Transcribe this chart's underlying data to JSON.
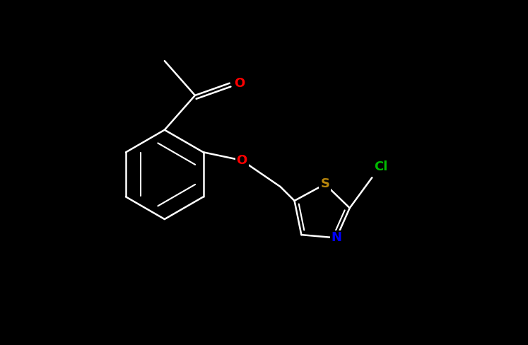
{
  "background_color": "#000000",
  "figsize": [
    7.47,
    4.88
  ],
  "dpi": 100,
  "atom_colors": {
    "O": "#FF0000",
    "S": "#B8860B",
    "N": "#0000FF",
    "Cl": "#00BB00",
    "C": "#FFFFFF"
  },
  "bond_color": "#FFFFFF",
  "bond_width": 1.8,
  "label_fontsize": 13,
  "xlim": [
    -1.0,
    9.5
  ],
  "ylim": [
    -1.0,
    7.5
  ]
}
